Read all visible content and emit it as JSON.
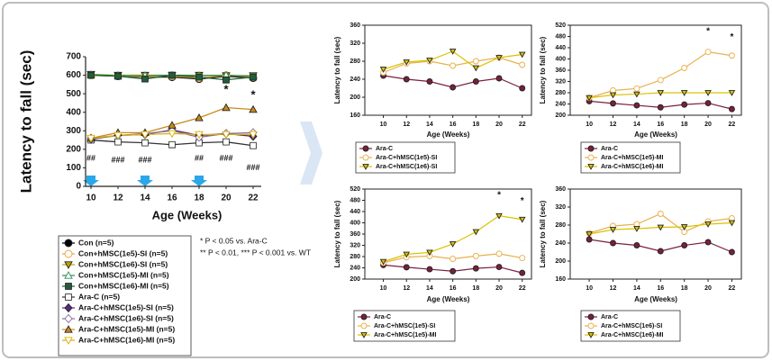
{
  "chart_data": [
    {
      "type": "line",
      "y_label": "Latency to fall (sec)",
      "x_label": "Age (Weeks)",
      "x": [
        10,
        12,
        14,
        16,
        18,
        20,
        22
      ],
      "xlim": [
        9.6,
        22.6
      ],
      "xticks": [
        10,
        12,
        14,
        16,
        18,
        20,
        22
      ],
      "ylim": [
        0,
        700
      ],
      "yticks": [
        0,
        100,
        200,
        300,
        400,
        500,
        600,
        700
      ],
      "frame": false,
      "legend": "below",
      "series": [
        {
          "name": "Con  (n=5)",
          "color": "#000000",
          "marker": "circle",
          "values": [
            600,
            595,
            590,
            590,
            580,
            595,
            585
          ]
        },
        {
          "name": "Con+hMSC(1e5)-SI (n=5)",
          "color": "#e8a33c",
          "marker": "circle-open",
          "values": [
            600,
            598,
            592,
            595,
            585,
            600,
            590
          ]
        },
        {
          "name": "Con+hMSC(1e6)-SI (n=5)",
          "color": "#b8a800",
          "marker": "triangle-down",
          "values": [
            605,
            600,
            600,
            600,
            600,
            598,
            598
          ]
        },
        {
          "name": "Con+hMSC(1e5)-MI (n=5)",
          "color": "#2e8b57",
          "marker": "triangle-up-open",
          "values": [
            602,
            598,
            598,
            600,
            598,
            600,
            595
          ]
        },
        {
          "name": "Con+hMSC(1e6)-MI (n=5)",
          "color": "#1f5f3a",
          "marker": "square",
          "values": [
            600,
            595,
            580,
            600,
            590,
            575,
            590
          ]
        },
        {
          "name": "Ara-C (n=5)",
          "color": "#333333",
          "marker": "square-open",
          "values": [
            250,
            240,
            235,
            225,
            235,
            240,
            220
          ]
        },
        {
          "name": "Ara-C+hMSC(1e5)-SI (n=5)",
          "color": "#5a2a82",
          "marker": "diamond",
          "values": [
            255,
            275,
            280,
            305,
            275,
            285,
            270
          ]
        },
        {
          "name": "Ara-C+hMSC(1e6)-SI (n=5)",
          "color": "#8a6a9a",
          "marker": "diamond-open",
          "values": [
            260,
            275,
            285,
            300,
            265,
            285,
            290
          ]
        },
        {
          "name": "Ara-C+hMSC(1e5)-MI (n=5)",
          "color": "#c88a1a",
          "marker": "triangle-up",
          "values": [
            260,
            290,
            290,
            330,
            370,
            425,
            415
          ]
        },
        {
          "name": "Ara-C+hMSC(1e6)-MI (n=5)",
          "color": "#d9b000",
          "marker": "triangle-down-open",
          "values": [
            260,
            275,
            280,
            285,
            280,
            280,
            280
          ]
        }
      ],
      "annotations": [
        {
          "text": "##",
          "x": 10,
          "y": 150
        },
        {
          "text": "###",
          "x": 12,
          "y": 140
        },
        {
          "text": "###",
          "x": 14,
          "y": 140
        },
        {
          "text": "##",
          "x": 18,
          "y": 150
        },
        {
          "text": "###",
          "x": 20,
          "y": 150
        },
        {
          "text": "###",
          "x": 22,
          "y": 100
        },
        {
          "text": "*",
          "x": 20,
          "y": 520
        },
        {
          "text": "*",
          "x": 22,
          "y": 490
        }
      ],
      "notes": [
        "* P < 0.05 vs. Ara-C",
        "** P < 0.01, *** P < 0.001 vs. WT"
      ]
    },
    {
      "type": "line",
      "y_label": "Latency to fall (sec)",
      "x_label": "Age (Weeks)",
      "x": [
        10,
        12,
        14,
        16,
        18,
        20,
        22
      ],
      "xlim": [
        8.4,
        22.8
      ],
      "xticks": [
        10,
        12,
        14,
        16,
        18,
        20,
        22
      ],
      "ylim": [
        160,
        360
      ],
      "yticks": [
        160,
        200,
        240,
        280,
        320,
        360
      ],
      "frame": true,
      "legend": "below",
      "series": [
        {
          "name": "Ara-C",
          "color": "#7a1f3d",
          "marker": "circle",
          "values": [
            248,
            240,
            235,
            222,
            235,
            242,
            220
          ]
        },
        {
          "name": "Ara-C+hMSC(1e5)-SI",
          "color": "#e8b04c",
          "marker": "circle-open",
          "values": [
            255,
            275,
            280,
            270,
            280,
            288,
            272
          ]
        },
        {
          "name": "Ara-C+hMSC(1e6)-SI",
          "color": "#d9c200",
          "marker": "triangle-down",
          "values": [
            262,
            278,
            282,
            302,
            265,
            288,
            295
          ]
        }
      ],
      "annotations": []
    },
    {
      "type": "line",
      "y_label": "Latency to fall (sec)",
      "x_label": "Age (Weeks)",
      "x": [
        10,
        12,
        14,
        16,
        18,
        20,
        22
      ],
      "xlim": [
        8.4,
        22.8
      ],
      "xticks": [
        10,
        12,
        14,
        16,
        18,
        20,
        22
      ],
      "ylim": [
        200,
        520
      ],
      "yticks": [
        200,
        240,
        280,
        320,
        360,
        400,
        440,
        480,
        520
      ],
      "frame": true,
      "legend": "below",
      "series": [
        {
          "name": "Ara-C",
          "color": "#7a1f3d",
          "marker": "circle",
          "values": [
            250,
            242,
            235,
            228,
            238,
            243,
            222
          ]
        },
        {
          "name": "Ara-C+hMSC(1e5)-MI",
          "color": "#e8b04c",
          "marker": "circle-open",
          "values": [
            262,
            288,
            295,
            325,
            368,
            425,
            412
          ]
        },
        {
          "name": "Ara-C+hMSC(1e6)-MI",
          "color": "#d9c200",
          "marker": "triangle-down",
          "values": [
            262,
            272,
            275,
            280,
            280,
            280,
            280
          ]
        }
      ],
      "annotations": [
        {
          "text": "*",
          "x": 20,
          "y": 498
        },
        {
          "text": "*",
          "x": 22,
          "y": 478
        }
      ]
    },
    {
      "type": "line",
      "y_label": "Latency to fall (sec)",
      "x_label": "Age (Weeks)",
      "x": [
        10,
        12,
        14,
        16,
        18,
        20,
        22
      ],
      "xlim": [
        8.4,
        22.8
      ],
      "xticks": [
        10,
        12,
        14,
        16,
        18,
        20,
        22
      ],
      "ylim": [
        200,
        520
      ],
      "yticks": [
        200,
        240,
        280,
        320,
        360,
        400,
        440,
        480,
        520
      ],
      "frame": true,
      "legend": "below",
      "series": [
        {
          "name": "Ara-C",
          "color": "#7a1f3d",
          "marker": "circle",
          "values": [
            250,
            242,
            235,
            228,
            238,
            243,
            222
          ]
        },
        {
          "name": "Ara-C+hMSC(1e5)-SI",
          "color": "#e8b04c",
          "marker": "circle-open",
          "values": [
            258,
            278,
            282,
            272,
            282,
            290,
            275
          ]
        },
        {
          "name": "Ara-C+hMSC(1e5)-MI",
          "color": "#d9c200",
          "marker": "triangle-down",
          "values": [
            262,
            288,
            295,
            325,
            368,
            425,
            412
          ]
        }
      ],
      "annotations": [
        {
          "text": "*",
          "x": 20,
          "y": 498
        },
        {
          "text": "*",
          "x": 22,
          "y": 478
        }
      ]
    },
    {
      "type": "line",
      "y_label": "Latency to fall (sec)",
      "x_label": "Age (Weeks)",
      "x": [
        10,
        12,
        14,
        16,
        18,
        20,
        22
      ],
      "xlim": [
        8.4,
        22.8
      ],
      "xticks": [
        10,
        12,
        14,
        16,
        18,
        20,
        22
      ],
      "ylim": [
        160,
        360
      ],
      "yticks": [
        160,
        200,
        240,
        280,
        320,
        360
      ],
      "frame": true,
      "legend": "below",
      "series": [
        {
          "name": "Ara-C",
          "color": "#7a1f3d",
          "marker": "circle",
          "values": [
            248,
            240,
            235,
            222,
            235,
            242,
            220
          ]
        },
        {
          "name": "Ara-C+hMSC(1e6)-SI",
          "color": "#e8b04c",
          "marker": "circle-open",
          "values": [
            262,
            278,
            282,
            305,
            265,
            288,
            295
          ]
        },
        {
          "name": "Ara-C+hMSC(1e6)-MI",
          "color": "#d9c200",
          "marker": "triangle-down",
          "values": [
            260,
            270,
            272,
            275,
            276,
            282,
            285
          ]
        }
      ],
      "annotations": []
    }
  ]
}
